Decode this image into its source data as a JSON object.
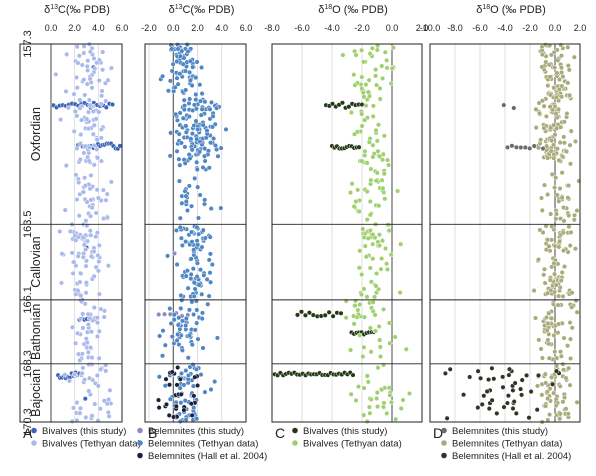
{
  "figure": {
    "stages": [
      "Oxfordian",
      "Callovian",
      "Bathonian",
      "Bajocian"
    ],
    "age_ticks": [
      "157.3",
      "163.5",
      "166.1",
      "168.3",
      "170.3"
    ],
    "age_values": [
      157.3,
      163.5,
      166.1,
      168.3,
      170.3
    ],
    "colors": {
      "bivalve_this_study": "#3a63b8",
      "bivalve_tethyan": "#aab9ec",
      "belemnite_this_study": "#9089c4",
      "belemnite_tethyan_blue": "#4f86c4",
      "belemnite_hall": "#1b2238",
      "belemnite_this_study_d": "#6b6b6b",
      "belemnite_tethyan_d": "#a8ab7a",
      "belemnite_hall_d": "#2e3426",
      "o_belemnite_tethyan": "#9fd06e",
      "o_hall": "#243819"
    }
  },
  "chart_data": [
    {
      "type": "scatter",
      "panel_letter": "A",
      "axis_title_parts": [
        "δ",
        "13",
        "C(‰ PDB)"
      ],
      "xlim": [
        0,
        6
      ],
      "xticks": [
        "0.0",
        "2.0",
        "4.0",
        "6.0"
      ],
      "ylim": [
        157.3,
        170.3
      ],
      "series": [
        {
          "name": "Bivalves (this study)",
          "color": "#3a63b8",
          "bands": [
            {
              "age": [
                159.3,
                159.5
              ],
              "x": [
                0.2,
                5.2
              ],
              "n": 20
            },
            {
              "age": [
                160.7,
                160.9
              ],
              "x": [
                2.3,
                6.2
              ],
              "n": 22
            },
            {
              "age": [
                166.7,
                166.8
              ],
              "x": [
                2.4,
                3.9
              ],
              "n": 8
            },
            {
              "age": [
                168.6,
                168.8
              ],
              "x": [
                0.6,
                2.4
              ],
              "n": 12
            }
          ],
          "points": [
            [
              2.6,
              166.1
            ],
            [
              3.0,
              164.3
            ],
            [
              3.6,
              158.1
            ],
            [
              3.9,
              161.2
            ],
            [
              2.9,
              169.5
            ]
          ]
        },
        {
          "name": "Bivalves (Tethyan data)",
          "color": "#aab9ec",
          "clusters": [
            {
              "age": [
                157.3,
                163.4
              ],
              "mean": 3.2,
              "sd": 0.8,
              "n": 140
            },
            {
              "age": [
                163.5,
                166.0
              ],
              "mean": 3.0,
              "sd": 0.8,
              "n": 70
            },
            {
              "age": [
                166.1,
                168.2
              ],
              "mean": 3.3,
              "sd": 0.7,
              "n": 45
            },
            {
              "age": [
                168.3,
                170.3
              ],
              "mean": 3.3,
              "sd": 1.1,
              "n": 45
            }
          ]
        }
      ]
    },
    {
      "type": "scatter",
      "panel_letter": "B",
      "axis_title_parts": [
        "δ",
        "13",
        "C(‰ PDB)"
      ],
      "xlim": [
        -2,
        6
      ],
      "xticks": [
        "-2.0",
        "0.0",
        "2.0",
        "4.0",
        "6.0"
      ],
      "ylim": [
        157.3,
        170.3
      ],
      "series": [
        {
          "name": "Belemnites  (this study)",
          "color": "#9089c4",
          "bands": [
            {
              "age": [
                166.5,
                166.7
              ],
              "x": [
                -1.2,
                1.2
              ],
              "n": 6
            }
          ],
          "points": [
            [
              0.1,
              164.5
            ],
            [
              0.9,
              168.8
            ],
            [
              1.5,
              169.4
            ]
          ]
        },
        {
          "name": "Belemnites (Tethyan data)",
          "color": "#4f86c4",
          "clusters": [
            {
              "age": [
                157.3,
                159.0
              ],
              "mean": 0.8,
              "sd": 0.7,
              "n": 70
            },
            {
              "age": [
                159.0,
                161.2
              ],
              "mean": 1.9,
              "sd": 1.0,
              "n": 120
            },
            {
              "age": [
                161.2,
                163.4
              ],
              "mean": 1.8,
              "sd": 0.9,
              "n": 35
            },
            {
              "age": [
                163.5,
                166.0
              ],
              "mean": 1.7,
              "sd": 0.8,
              "n": 80
            },
            {
              "age": [
                166.1,
                168.2
              ],
              "mean": 1.0,
              "sd": 0.9,
              "n": 55
            },
            {
              "age": [
                168.3,
                170.3
              ],
              "mean": 1.0,
              "sd": 0.8,
              "n": 60
            }
          ]
        },
        {
          "name": "Belemnites (Hall et al. 2004)",
          "color": "#1b2238",
          "clusters": [
            {
              "age": [
                168.4,
                170.2
              ],
              "mean": 0.5,
              "sd": 0.9,
              "n": 30
            }
          ]
        }
      ]
    },
    {
      "type": "scatter",
      "panel_letter": "C",
      "axis_title_parts": [
        "δ",
        "18",
        "O (‰ PDB)"
      ],
      "xlim": [
        -8,
        2
      ],
      "xticks": [
        "-8.0",
        "-6.0",
        "-4.0",
        "-2.0",
        "0.0",
        "2.0"
      ],
      "ylim": [
        157.3,
        170.3
      ],
      "series": [
        {
          "name": "Bivalves (this study)",
          "color": "#243819",
          "bands": [
            {
              "age": [
                159.3,
                159.5
              ],
              "x": [
                -4.4,
                -2.0
              ],
              "n": 12
            },
            {
              "age": [
                160.8,
                160.9
              ],
              "x": [
                -4.0,
                -2.2
              ],
              "n": 12
            },
            {
              "age": [
                166.5,
                166.7
              ],
              "x": [
                -6.3,
                -3.4
              ],
              "n": 12
            },
            {
              "age": [
                167.2,
                167.3
              ],
              "x": [
                -2.7,
                -1.2
              ],
              "n": 10
            },
            {
              "age": [
                168.6,
                168.7
              ],
              "x": [
                -8.0,
                -2.6
              ],
              "n": 30
            }
          ]
        },
        {
          "name": "Bivalves (Tethyan data)",
          "color": "#9fd06e",
          "clusters": [
            {
              "age": [
                157.3,
                163.4
              ],
              "mean": -1.4,
              "sd": 0.7,
              "n": 110
            },
            {
              "age": [
                163.5,
                166.0
              ],
              "mean": -1.0,
              "sd": 0.7,
              "n": 50
            },
            {
              "age": [
                166.1,
                168.2
              ],
              "mean": -1.6,
              "sd": 0.9,
              "n": 35
            },
            {
              "age": [
                168.3,
                170.3
              ],
              "mean": -0.9,
              "sd": 1.0,
              "n": 35
            }
          ]
        }
      ]
    },
    {
      "type": "scatter",
      "panel_letter": "D",
      "axis_title_parts": [
        "δ",
        "18",
        "O (‰ PDB)"
      ],
      "xlim": [
        -10,
        2
      ],
      "xticks": [
        "-10.0",
        "-8.0",
        "-6.0",
        "-4.0",
        "-2.0",
        "0.0",
        "2.0"
      ],
      "ylim": [
        157.3,
        170.3
      ],
      "series": [
        {
          "name": "Belemnites  (this study)",
          "color": "#6b6b6b",
          "bands": [
            {
              "age": [
                160.8,
                160.9
              ],
              "x": [
                -3.8,
                -0.6
              ],
              "n": 10
            }
          ],
          "points": [
            [
              -4.1,
              159.4
            ],
            [
              -3.3,
              159.5
            ]
          ]
        },
        {
          "name": "Belemnites (Tethyan data)",
          "color": "#a8ab7a",
          "clusters": [
            {
              "age": [
                157.3,
                159.0
              ],
              "mean": 0.0,
              "sd": 0.6,
              "n": 60
            },
            {
              "age": [
                159.0,
                161.2
              ],
              "mean": -0.1,
              "sd": 0.8,
              "n": 100
            },
            {
              "age": [
                161.2,
                163.4
              ],
              "mean": 0.5,
              "sd": 0.8,
              "n": 40
            },
            {
              "age": [
                163.5,
                166.0
              ],
              "mean": 0.1,
              "sd": 0.7,
              "n": 80
            },
            {
              "age": [
                166.1,
                168.2
              ],
              "mean": -0.2,
              "sd": 0.8,
              "n": 55
            },
            {
              "age": [
                168.3,
                170.3
              ],
              "mean": 0.1,
              "sd": 0.8,
              "n": 60
            }
          ]
        },
        {
          "name": "Belemnites (Hall et al. 2004)",
          "color": "#2e3426",
          "clusters": [
            {
              "age": [
                168.4,
                170.2
              ],
              "mean": -4.2,
              "sd": 2.0,
              "n": 45
            }
          ]
        }
      ]
    }
  ]
}
